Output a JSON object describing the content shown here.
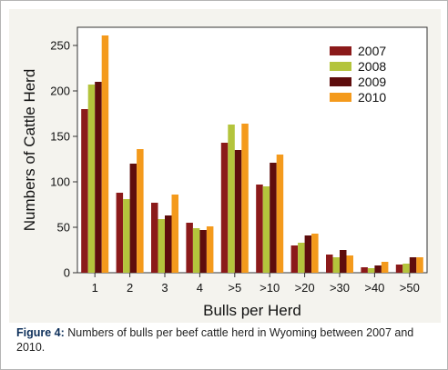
{
  "caption": {
    "label": "Figure 4:",
    "text": "Numbers of bulls per beef cattle herd in Wyoming between 2007 and 2010."
  },
  "colors": {
    "panel_background": "#f4f3ee",
    "series_2007": "#8b1a1a",
    "series_2008": "#b4c43c",
    "series_2009": "#5e0d0d",
    "series_2010": "#f49a1c"
  },
  "chart_data": {
    "type": "bar",
    "title": "",
    "xlabel": "Bulls per Herd",
    "ylabel": "Numbers of Cattle Herd",
    "categories": [
      "1",
      "2",
      "3",
      "4",
      ">5",
      ">10",
      ">20",
      ">30",
      ">40",
      ">50"
    ],
    "ylim": [
      0,
      270
    ],
    "yticks": [
      0,
      50,
      100,
      150,
      200,
      250
    ],
    "grid": false,
    "legend_position": "top-right",
    "series": [
      {
        "name": "2007",
        "color": "#8b1a1a",
        "values": [
          180,
          88,
          77,
          55,
          143,
          97,
          30,
          20,
          6,
          9
        ]
      },
      {
        "name": "2008",
        "color": "#b4c43c",
        "values": [
          207,
          81,
          59,
          49,
          163,
          95,
          33,
          17,
          5,
          10
        ]
      },
      {
        "name": "2009",
        "color": "#5e0d0d",
        "values": [
          210,
          120,
          63,
          47,
          135,
          121,
          41,
          25,
          8,
          17
        ]
      },
      {
        "name": "2010",
        "color": "#f49a1c",
        "values": [
          261,
          136,
          86,
          51,
          164,
          130,
          43,
          19,
          12,
          17
        ]
      }
    ]
  }
}
